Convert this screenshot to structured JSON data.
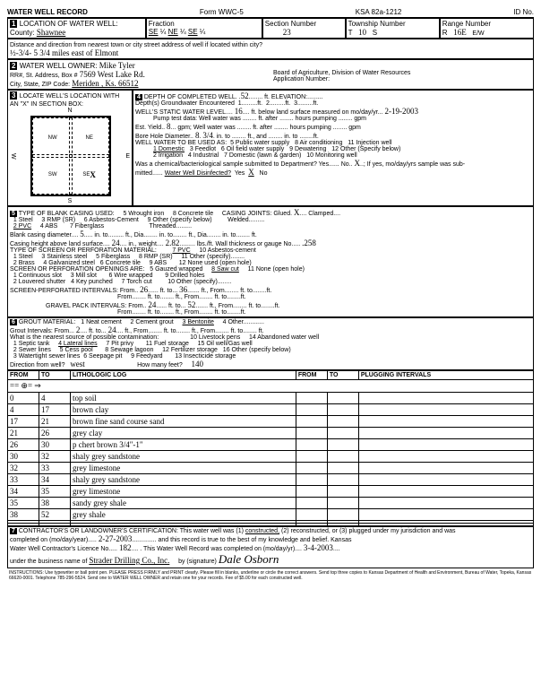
{
  "form": {
    "title": "WATER WELL RECORD",
    "form_no": "Form WWC-5",
    "ksa": "KSA 82a-1212",
    "id_no": "ID No."
  },
  "loc": {
    "label": "LOCATION OF WATER WELL:",
    "county_label": "County:",
    "county": "Shawnee",
    "fraction": "Fraction",
    "f1a": "SE",
    "f1b": "¼",
    "f2a": "NE",
    "f2b": "¼",
    "f3a": "SE",
    "f3b": "¼",
    "secnum_label": "Section Number",
    "secnum": "23",
    "twp_label": "Township Number",
    "twp_t": "T",
    "twp": "10",
    "twp_s": "S",
    "range_label": "Range Number",
    "range_r": "R",
    "range": "16E",
    "ew": "E/W"
  },
  "dist": {
    "label": "Distance and direction from nearest town or city street address of well if located within city?",
    "value": "½-3/4- 5 3/4 miles east of Elmont"
  },
  "owner": {
    "label": "WATER WELL OWNER:",
    "name": "Mike Tyler",
    "rr_label": "RR#, St. Address, Box #",
    "addr": "7569 West Lake Rd.",
    "csz_label": "City, State, ZIP Code:",
    "city": "Meriden , Ks. 66512",
    "board": "Board of Agriculture, Division of Water Resources",
    "appnum": "Application Number:"
  },
  "locwith": {
    "label": "LOCATE WELL'S LOCATION WITH",
    "x_label": "AN \"X\" IN SECTION BOX:",
    "n": "N",
    "s": "S",
    "e": "E",
    "w": "W",
    "nw": "NW",
    "ne": "NE",
    "sw": "SW",
    "se": "SE",
    "x": "X"
  },
  "depth": {
    "label": "DEPTH OF COMPLETED WELL.",
    "value": "52",
    "ft": "ft.",
    "elev": "ELEVATION:",
    "gw": "Depth(s) Groundwater Encountered",
    "gw1": "1.",
    "gw2": "2.",
    "gw3": "3.",
    "swl_label": "WELL'S STATIC WATER LEVEL",
    "swl": "16",
    "swl_txt": "ft. below land surface measured on mo/day/yr",
    "swl_date": "2-19-2003",
    "pump_label": "Pump test data: Well water was",
    "pump_after": "ft. after",
    "hours_pumping": "hours pumping",
    "gpm": "gpm",
    "est_label": "Est. Yield",
    "est": "8",
    "est_gpm": "gpm; Well water was",
    "est_after": "ft. after",
    "bore_label": "Bore Hole Diameter",
    "bore1": "8",
    "bore2": "3/4",
    "in_to": "in. to",
    "ft_and": "ft., and",
    "use_label": "WELL WATER TO BE USED AS:",
    "uses": [
      "1 Domestic",
      "2 Irrigation",
      "3 Feedlot",
      "4 Industrial",
      "5 Public water supply",
      "6 Oil field water supply",
      "7 Domestic (lawn & garden)",
      "8 Air conditioning",
      "9 Dewatering",
      "10 Monitoring well",
      "11 Injection well",
      "12 Other (Specify below)"
    ],
    "chem": "Was a chemical/bacteriological sample submitted to Department? Yes",
    "no": "No",
    "x": "X",
    "ifyes": "If yes, mo/day/yrs sample was sub-",
    "mitted": "mitted",
    "disinf": "Water Well Disinfected?",
    "yes": "Yes"
  },
  "casing": {
    "label": "TYPE OF BLANK CASING USED:",
    "types": [
      "1 Steel",
      "2 PVC",
      "3 RMP (SR)",
      "4 ABS",
      "5 Wrought iron",
      "6 Asbestos-Cement",
      "7 Fiberglass",
      "8 Concrete tile",
      "9 Other (specify below)"
    ],
    "joints_label": "CASING JOINTS: Glued",
    "glued_x": "X",
    "clamped": "Clamped",
    "welded": "Welded",
    "threaded": "Threaded",
    "bcd_label": "Blank casing diameter",
    "bcd": "5",
    "into": "in. to",
    "ftdia": "ft., Dia",
    "ft": "ft.",
    "height_label": "Casing height above land surface",
    "height": "24",
    "weight_label": "in., weight",
    "weight": "2.82",
    "lbs": "lbs./ft. Wall thickness or gauge No.",
    "gauge": ".258",
    "perf_label": "TYPE OF SCREEN OR PERFORATION MATERIAL:",
    "perf_types": [
      "1 Steel",
      "2 Brass",
      "3 Stainless steel",
      "4 Galvanized steel",
      "5 Fiberglass",
      "6 Concrete tile",
      "7 PVC",
      "8 RMP (SR)",
      "9 ABS",
      "10 Asbestos-cement",
      "11 Other (specify)",
      "12 None used (open hole)"
    ],
    "open_label": "SCREEN OR PERFORATION OPENINGS ARE:",
    "openings": [
      "1 Continuous slot",
      "2 Louvered shutter",
      "3 Mill slot",
      "4 Key punched",
      "5 Gauzed wrapped",
      "6 Wire wrapped",
      "7 Torch cut",
      "8 Saw cut",
      "9 Drilled holes",
      "10 Other (specify)",
      "11 None (open hole)"
    ],
    "screen_int": "SCREEN-PERFORATED INTERVALS: From",
    "s_from1": "26",
    "s_to1": "36",
    "to": "ft. to",
    "ftfrom": "ft., From",
    "gravel": "GRAVEL PACK INTERVALS: From",
    "g_from1": "24",
    "g_to1": "52",
    "from": "From"
  },
  "grout": {
    "label": "GROUT MATERIAL:",
    "opts": [
      "1 Neat cement",
      "2 Cement grout",
      "3 Bentonite",
      "4 Other"
    ],
    "int": "Grout Intervals: From",
    "from": "2",
    "to": "24",
    "ftto": "ft. to",
    "ftfrom": "ft., From",
    "ft": "ft.",
    "contam": "What is the nearest source of possible contamination:",
    "sources": [
      "1 Septic tank",
      "2 Sewer lines",
      "3 Watertight sewer lines",
      "4 Lateral lines",
      "5 Cess pool",
      "6 Seepage pit",
      "7 Pit privy",
      "8 Sewage lagoon",
      "9 Feedyard",
      "10 Livestock pens",
      "11 Fuel storage",
      "12 Fertilizer storage",
      "13 Insecticide storage",
      "14 Abandoned water well",
      "15 Oil well/Gas well",
      "16 Other (specify below)"
    ],
    "dir_label": "Direction from well?",
    "dir": "west",
    "howmany": "How many feet?",
    "feet": "140"
  },
  "log": {
    "headers": [
      "FROM",
      "TO",
      "LITHOLOGIC LOG",
      "FROM",
      "TO",
      "PLUGGING INTERVALS"
    ],
    "arrows": "== ⊕= ⇒",
    "rows": [
      [
        "0",
        "4",
        "top soil",
        "",
        "",
        ""
      ],
      [
        "4",
        "17",
        "brown clay",
        "",
        "",
        ""
      ],
      [
        "17",
        "21",
        "brown fine sand course sand",
        "",
        "",
        ""
      ],
      [
        "21",
        "26",
        "grey clay",
        "",
        "",
        ""
      ],
      [
        "26",
        "30",
        "p chert brown 3/4\"-1\"",
        "",
        "",
        ""
      ],
      [
        "30",
        "32",
        "shaly grey sandstone",
        "",
        "",
        ""
      ],
      [
        "32",
        "33",
        "grey limestone",
        "",
        "",
        ""
      ],
      [
        "33",
        "34",
        "shaly grey sandstone",
        "",
        "",
        ""
      ],
      [
        "34",
        "35",
        "grey limestone",
        "",
        "",
        ""
      ],
      [
        "35",
        "38",
        "sandy grey shale",
        "",
        "",
        ""
      ],
      [
        "38",
        "52",
        "grey shale",
        "",
        "",
        ""
      ],
      [
        "",
        "",
        "",
        "",
        "",
        ""
      ],
      [
        "",
        "",
        "",
        "",
        "",
        ""
      ]
    ]
  },
  "cert": {
    "label": "CONTRACTOR'S OR LANDOWNER'S CERTIFICATION: This water well was (1)",
    "constructed": "constructed,",
    "rest": "(2) reconstructed, or (3) plugged under my jurisdiction and was",
    "completed": "completed on (mo/day/year)",
    "date1": "2-27-2003",
    "record": "and this record is true to the best of my knowledge and belief. Kansas",
    "lic": "Water Well Contractor's Licence No.",
    "licno": "182",
    "wwr": ". This Water Well Record was completed on (mo/day/yr)",
    "date2": "3-4-2003",
    "biz": "under the business name of",
    "bizname": "Strader Drilling Co., Inc.",
    "sig": "by (signature)",
    "signature": "Dale Osborn"
  },
  "instr": "INSTRUCTIONS: Use typewriter or ball point pen. PLEASE PRESS FIRMLY and PRINT clearly. Please fill in blanks, underline or circle the correct answers. Send top three copies to Kansas Department of Health and Environment, Bureau of Water, Topeka, Kansas 66620-0001. Telephone 785-296-5524. Send one to WATER WELL OWNER and retain one for your records. Fee of $5.00 for each constructed well."
}
